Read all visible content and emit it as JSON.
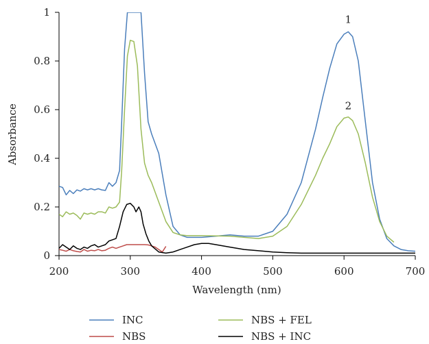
{
  "chart_data": {
    "type": "line",
    "xlabel": "Wavelength (nm)",
    "ylabel": "Absorbance",
    "xlim": [
      200,
      700
    ],
    "ylim": [
      0,
      1
    ],
    "x_ticks": [
      200,
      300,
      400,
      500,
      600,
      700
    ],
    "y_ticks": [
      0,
      0.2,
      0.4,
      0.6,
      0.8,
      1
    ],
    "y_tick_labels": [
      "0",
      "0.2",
      "0.4",
      "0.6",
      "0.8",
      "1"
    ],
    "grid": false,
    "legend_position": "bottom",
    "annotations": [
      {
        "text": "1",
        "x": 606,
        "y": 0.97
      },
      {
        "text": "2",
        "x": 606,
        "y": 0.615
      }
    ],
    "series": [
      {
        "name": "INC",
        "color": "#4a7ebb",
        "x": [
          200,
          205,
          210,
          215,
          220,
          225,
          230,
          235,
          240,
          245,
          250,
          255,
          260,
          265,
          270,
          275,
          280,
          285,
          288,
          292,
          296,
          300,
          305,
          310,
          315,
          320,
          325,
          330,
          340,
          350,
          360,
          370,
          380,
          390,
          400,
          420,
          440,
          460,
          480,
          500,
          520,
          540,
          560,
          570,
          580,
          590,
          600,
          606,
          612,
          620,
          630,
          640,
          650,
          660,
          670,
          680,
          690,
          700
        ],
        "y": [
          0.285,
          0.28,
          0.25,
          0.268,
          0.255,
          0.27,
          0.265,
          0.275,
          0.27,
          0.275,
          0.27,
          0.275,
          0.27,
          0.268,
          0.3,
          0.285,
          0.3,
          0.35,
          0.55,
          0.85,
          1.0,
          1.0,
          1.0,
          1.0,
          1.0,
          0.75,
          0.55,
          0.5,
          0.42,
          0.25,
          0.12,
          0.085,
          0.075,
          0.075,
          0.075,
          0.08,
          0.085,
          0.08,
          0.08,
          0.1,
          0.17,
          0.3,
          0.52,
          0.65,
          0.77,
          0.87,
          0.91,
          0.92,
          0.9,
          0.8,
          0.55,
          0.3,
          0.15,
          0.07,
          0.04,
          0.025,
          0.02,
          0.018
        ]
      },
      {
        "name": "NBS",
        "color": "#be4b48",
        "x": [
          200,
          205,
          210,
          215,
          220,
          225,
          230,
          235,
          240,
          245,
          250,
          255,
          260,
          265,
          270,
          275,
          280,
          285,
          290,
          295,
          300,
          305,
          310,
          315,
          320,
          325,
          330,
          335,
          340,
          345,
          350
        ],
        "y": [
          0.025,
          0.022,
          0.018,
          0.025,
          0.02,
          0.017,
          0.015,
          0.025,
          0.018,
          0.022,
          0.02,
          0.025,
          0.02,
          0.022,
          0.03,
          0.035,
          0.03,
          0.035,
          0.04,
          0.045,
          0.045,
          0.045,
          0.045,
          0.045,
          0.045,
          0.044,
          0.04,
          0.035,
          0.025,
          0.015,
          0.038
        ]
      },
      {
        "name": "NBS + FEL",
        "color": "#9bbb59",
        "x": [
          200,
          205,
          210,
          215,
          220,
          225,
          230,
          235,
          240,
          245,
          250,
          255,
          260,
          265,
          270,
          275,
          280,
          285,
          288,
          292,
          296,
          300,
          305,
          310,
          315,
          320,
          325,
          330,
          340,
          350,
          360,
          370,
          380,
          400,
          440,
          460,
          480,
          500,
          520,
          540,
          560,
          570,
          580,
          590,
          600,
          606,
          612,
          620,
          630,
          640,
          650,
          660,
          670
        ],
        "y": [
          0.17,
          0.16,
          0.18,
          0.17,
          0.175,
          0.165,
          0.15,
          0.175,
          0.17,
          0.175,
          0.17,
          0.18,
          0.18,
          0.175,
          0.2,
          0.195,
          0.2,
          0.22,
          0.35,
          0.6,
          0.82,
          0.885,
          0.88,
          0.78,
          0.52,
          0.38,
          0.33,
          0.3,
          0.22,
          0.14,
          0.095,
          0.085,
          0.082,
          0.082,
          0.08,
          0.075,
          0.07,
          0.08,
          0.12,
          0.21,
          0.33,
          0.4,
          0.46,
          0.53,
          0.565,
          0.57,
          0.555,
          0.5,
          0.38,
          0.24,
          0.14,
          0.08,
          0.055
        ]
      },
      {
        "name": "NBS + INC",
        "color": "#000000",
        "x": [
          200,
          205,
          210,
          215,
          220,
          225,
          230,
          235,
          240,
          245,
          250,
          255,
          260,
          265,
          270,
          275,
          280,
          285,
          290,
          295,
          300,
          305,
          308,
          312,
          315,
          318,
          322,
          326,
          330,
          340,
          350,
          360,
          370,
          380,
          390,
          400,
          410,
          420,
          440,
          460,
          480,
          500,
          520,
          540,
          560,
          580,
          600,
          620,
          640,
          660,
          680,
          700
        ],
        "y": [
          0.03,
          0.045,
          0.035,
          0.025,
          0.04,
          0.03,
          0.025,
          0.035,
          0.03,
          0.04,
          0.045,
          0.035,
          0.04,
          0.045,
          0.06,
          0.065,
          0.07,
          0.12,
          0.18,
          0.21,
          0.215,
          0.2,
          0.18,
          0.2,
          0.18,
          0.13,
          0.09,
          0.06,
          0.04,
          0.015,
          0.01,
          0.015,
          0.025,
          0.035,
          0.045,
          0.05,
          0.05,
          0.045,
          0.035,
          0.025,
          0.02,
          0.015,
          0.012,
          0.01,
          0.01,
          0.01,
          0.01,
          0.01,
          0.01,
          0.01,
          0.01,
          0.01
        ]
      }
    ]
  }
}
